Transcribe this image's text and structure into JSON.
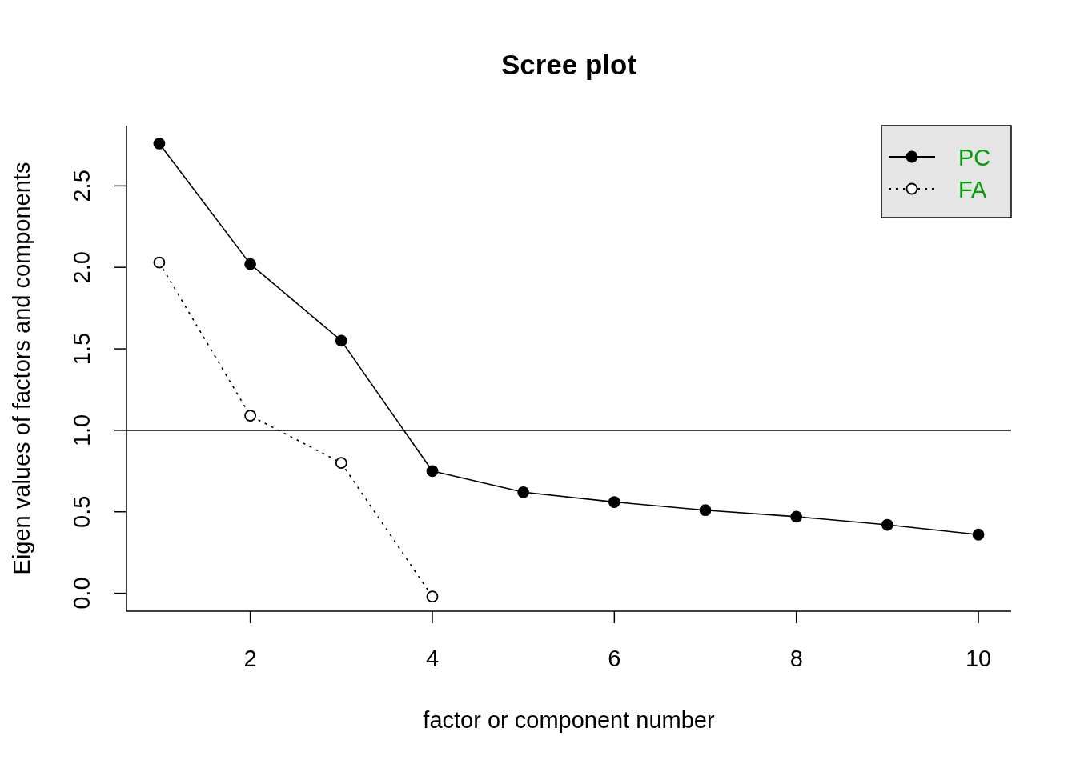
{
  "chart_data": {
    "type": "line",
    "title": "Scree plot",
    "xlabel": "factor or component number",
    "ylabel": "Eigen values of factors and components",
    "x": [
      1,
      2,
      3,
      4,
      5,
      6,
      7,
      8,
      9,
      10
    ],
    "series": [
      {
        "name": "PC",
        "color": "#000000",
        "line_style": "solid",
        "values": [
          2.76,
          2.02,
          1.55,
          0.75,
          0.62,
          0.56,
          0.51,
          0.47,
          0.42,
          0.36
        ]
      },
      {
        "name": "FA",
        "color": "#000000",
        "line_style": "dotted",
        "values": [
          2.03,
          1.09,
          0.8,
          -0.02,
          null,
          null,
          null,
          null,
          null,
          null
        ]
      }
    ],
    "marker": "circle",
    "xlim": [
      0.64,
      10.36
    ],
    "ylim": [
      -0.11,
      2.87
    ],
    "xticks": [
      2,
      4,
      6,
      8,
      10
    ],
    "yticks": [
      {
        "value": 0,
        "label": "0.0"
      },
      0.5,
      {
        "value": 1,
        "label": "1.0"
      },
      1.5,
      {
        "value": 2,
        "label": "2.0"
      },
      2.5
    ],
    "ref_lines": [
      {
        "axis": "y",
        "value": 1,
        "color": "#000000",
        "line_style": "solid"
      }
    ],
    "legend": "top right"
  }
}
